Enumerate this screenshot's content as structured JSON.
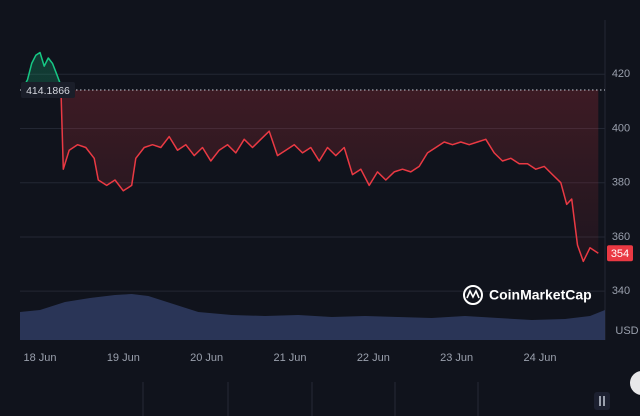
{
  "chart_data": {
    "type": "line",
    "baseline": 414.1866,
    "currency": "USD",
    "watermark": "CoinMarketCap",
    "up_color": "#16c784",
    "down_color": "#ea3943",
    "grid": true,
    "xlim": [
      17.76,
      24.78
    ],
    "xticks": [
      {
        "value": 18,
        "label": "18 Jun"
      },
      {
        "value": 19,
        "label": "19 Jun"
      },
      {
        "value": 20,
        "label": "20 Jun"
      },
      {
        "value": 21,
        "label": "21 Jun"
      },
      {
        "value": 22,
        "label": "22 Jun"
      },
      {
        "value": 23,
        "label": "23 Jun"
      },
      {
        "value": 24,
        "label": "24 Jun"
      }
    ],
    "ylim": [
      322,
      440
    ],
    "yticks": [
      340,
      360,
      380,
      400,
      420
    ],
    "series": [
      {
        "x": [
          17.78,
          17.85,
          17.9,
          17.95,
          18.0,
          18.05,
          18.1,
          18.15,
          18.2,
          18.25,
          18.28,
          18.35,
          18.45,
          18.55,
          18.65,
          18.7,
          18.8,
          18.9,
          19.0,
          19.1,
          19.15,
          19.25,
          19.35,
          19.45,
          19.55,
          19.65,
          19.75,
          19.85,
          19.95,
          20.05,
          20.15,
          20.25,
          20.35,
          20.45,
          20.55,
          20.65,
          20.75,
          20.85,
          20.95,
          21.05,
          21.15,
          21.25,
          21.35,
          21.45,
          21.55,
          21.65,
          21.75,
          21.85,
          21.95,
          22.05,
          22.15,
          22.25,
          22.35,
          22.45,
          22.55,
          22.65,
          22.75,
          22.85,
          22.95,
          23.05,
          23.15,
          23.25,
          23.35,
          23.45,
          23.55,
          23.65,
          23.75,
          23.85,
          23.95,
          24.05,
          24.15,
          24.25,
          24.32,
          24.38,
          24.45,
          24.52,
          24.6,
          24.7
        ],
        "values": [
          414,
          418,
          424,
          427,
          428,
          423,
          426,
          424,
          420,
          416,
          385,
          392,
          394,
          393,
          389,
          381,
          379,
          381,
          377,
          379,
          389,
          393,
          394,
          393,
          397,
          392,
          394,
          390,
          393,
          388,
          392,
          394,
          391,
          396,
          393,
          396,
          399,
          390,
          392,
          394,
          391,
          393,
          388,
          393,
          390,
          393,
          383,
          385,
          379,
          384,
          381,
          384,
          385,
          384,
          386,
          391,
          393,
          395,
          394,
          395,
          394,
          395,
          396,
          391,
          388,
          389,
          387,
          387,
          385,
          386,
          383,
          380,
          372,
          374,
          357,
          351,
          356,
          354
        ]
      }
    ],
    "volume": {
      "color": "#2e3a5e",
      "x": [
        17.76,
        18.0,
        18.3,
        18.6,
        18.9,
        19.1,
        19.3,
        19.6,
        19.9,
        20.3,
        20.7,
        21.1,
        21.5,
        21.9,
        22.3,
        22.7,
        23.1,
        23.5,
        23.9,
        24.3,
        24.6,
        24.78
      ],
      "values": [
        28,
        30,
        38,
        42,
        45,
        46,
        44,
        36,
        28,
        25,
        24,
        25,
        23,
        24,
        23,
        22,
        24,
        22,
        20,
        21,
        24,
        30
      ]
    }
  }
}
